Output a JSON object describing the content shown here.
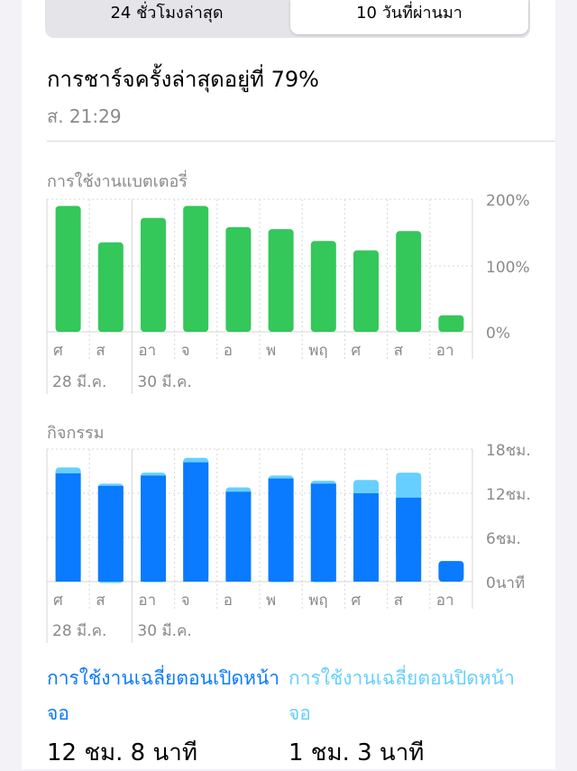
{
  "tabs": {
    "left_label": "24 ชั่วโมงล่าสุด",
    "right_label": "10 วันที่ผ่านมา"
  },
  "last_charge": {
    "title": "การชาร์จครั้งล่าสุดอยู่ที่ 79%",
    "time": "ส. 21:29"
  },
  "colors": {
    "battery_green": "#34c759",
    "screen_on": "#0a7aff",
    "screen_off": "#66cfff"
  },
  "chart_data": [
    {
      "type": "bar",
      "title": "การใช้งานแบตเตอรี่",
      "categories": [
        "ศ",
        "ส",
        "อา",
        "จ",
        "อ",
        "พ",
        "พฤ",
        "ศ",
        "ส",
        "อา"
      ],
      "date_labels": [
        "28 มี.ค.",
        "30 มี.ค."
      ],
      "values": [
        190,
        135,
        172,
        190,
        158,
        155,
        137,
        123,
        152,
        25
      ],
      "y_ticks": [
        "200%",
        "100%",
        "0%"
      ],
      "ylim": [
        0,
        200
      ]
    },
    {
      "type": "bar",
      "stacked": true,
      "title": "กิจกรรม",
      "categories": [
        "ศ",
        "ส",
        "อา",
        "จ",
        "อ",
        "พ",
        "พฤ",
        "ศ",
        "ส",
        "อา"
      ],
      "date_labels": [
        "28 มี.ค.",
        "30 มี.ค."
      ],
      "series": [
        {
          "name": "การใช้งานเฉลี่ยตอนเปิดหน้าจอ",
          "values": [
            14.7,
            13.0,
            14.4,
            16.2,
            12.2,
            14.0,
            13.3,
            12.0,
            11.4,
            2.8
          ]
        },
        {
          "name": "การใช้งานเฉลี่ยตอนปิดหน้าจอ",
          "values": [
            0.8,
            0.3,
            0.4,
            0.6,
            0.6,
            0.4,
            0.4,
            1.8,
            3.4,
            0
          ]
        }
      ],
      "y_ticks": [
        "18ชม.",
        "12ชม.",
        "6ชม.",
        "0นาที"
      ],
      "ylim": [
        0,
        18
      ]
    }
  ],
  "summary": {
    "screen_on_label": "การใช้งานเฉลี่ยตอนเปิดหน้าจอ",
    "screen_on_value": "12 ชม. 8 นาที",
    "screen_off_label": "การใช้งานเฉลี่ยตอนปิดหน้าจอ",
    "screen_off_value": "1 ชม. 3 นาที"
  }
}
